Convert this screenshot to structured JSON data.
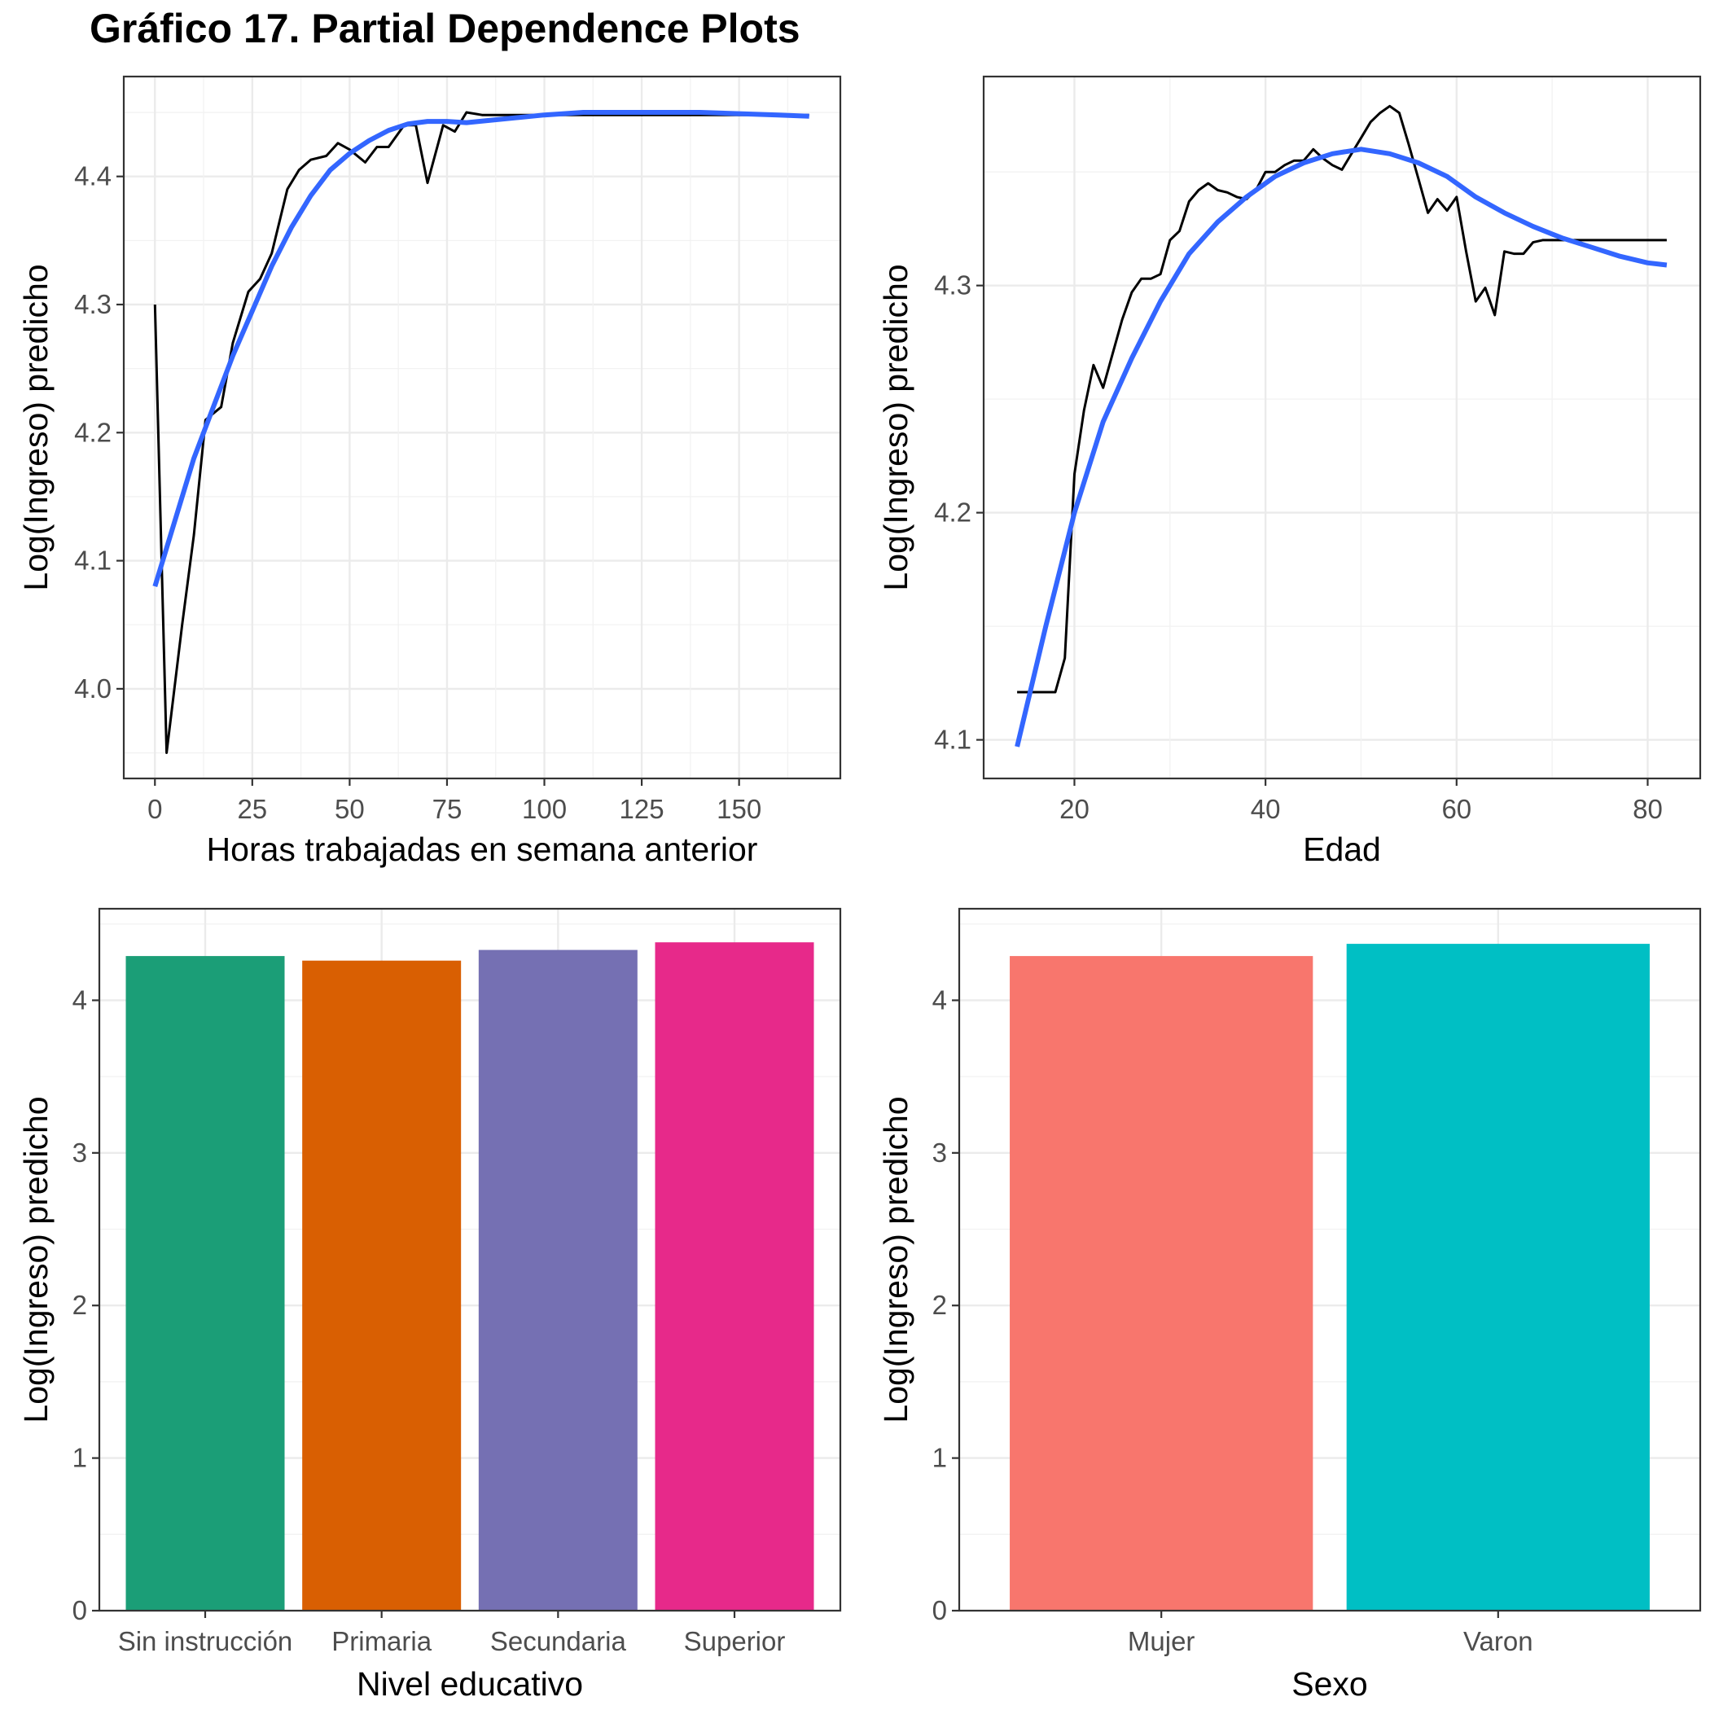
{
  "title": "Gráfico 17. Partial Dependence Plots",
  "chart_data": [
    {
      "type": "line",
      "xlabel": "Horas trabajadas en semana anterior",
      "ylabel": "Log(Ingreso) predicho",
      "xlim": [
        -8,
        176
      ],
      "ylim": [
        3.93,
        4.478
      ],
      "x_ticks": [
        0,
        25,
        50,
        75,
        100,
        125,
        150
      ],
      "y_ticks": [
        4.0,
        4.1,
        4.2,
        4.3,
        4.4
      ],
      "x_tick_labels": [
        "0",
        "25",
        "50",
        "75",
        "100",
        "125",
        "150"
      ],
      "y_tick_labels": [
        "4.0",
        "4.1",
        "4.2",
        "4.3",
        "4.4"
      ],
      "grid": true,
      "series": [
        {
          "color": "#000000",
          "x": [
            0,
            3,
            7,
            10,
            13,
            17,
            20,
            24,
            27,
            30,
            34,
            37,
            40,
            44,
            47,
            50,
            54,
            57,
            60,
            64,
            67,
            70,
            74,
            77,
            80,
            84,
            87,
            90,
            100,
            110,
            120,
            130,
            140,
            150,
            160,
            168
          ],
          "y": [
            4.3,
            3.95,
            4.05,
            4.12,
            4.21,
            4.22,
            4.27,
            4.31,
            4.32,
            4.34,
            4.39,
            4.405,
            4.413,
            4.416,
            4.426,
            4.421,
            4.411,
            4.423,
            4.423,
            4.44,
            4.44,
            4.395,
            4.44,
            4.435,
            4.45,
            4.448,
            4.448,
            4.448,
            4.448,
            4.448,
            4.448,
            4.448,
            4.448,
            4.448,
            4.448,
            4.448
          ]
        },
        {
          "color": "#3366ff",
          "x": [
            0,
            5,
            10,
            15,
            20,
            25,
            30,
            35,
            40,
            45,
            50,
            55,
            60,
            65,
            70,
            75,
            80,
            90,
            100,
            110,
            120,
            130,
            140,
            150,
            160,
            168
          ],
          "y": [
            4.08,
            4.13,
            4.18,
            4.22,
            4.26,
            4.295,
            4.33,
            4.36,
            4.385,
            4.405,
            4.418,
            4.428,
            4.436,
            4.441,
            4.443,
            4.443,
            4.442,
            4.445,
            4.448,
            4.45,
            4.45,
            4.45,
            4.45,
            4.449,
            4.448,
            4.447
          ]
        }
      ]
    },
    {
      "type": "line",
      "xlabel": "Edad",
      "ylabel": "Log(Ingreso) predicho",
      "xlim": [
        10.5,
        85.5
      ],
      "ylim": [
        4.083,
        4.392
      ],
      "x_ticks": [
        20,
        40,
        60,
        80
      ],
      "y_ticks": [
        4.1,
        4.2,
        4.3
      ],
      "x_tick_labels": [
        "20",
        "40",
        "60",
        "80"
      ],
      "y_tick_labels": [
        "4.1",
        "4.2",
        "4.3"
      ],
      "grid": true,
      "series": [
        {
          "color": "#000000",
          "x": [
            14,
            16,
            18,
            19,
            20,
            21,
            22,
            23,
            24,
            25,
            26,
            27,
            28,
            29,
            30,
            31,
            32,
            33,
            34,
            35,
            36,
            37,
            38,
            39,
            40,
            41,
            42,
            43,
            44,
            45,
            46,
            47,
            48,
            49,
            50,
            51,
            52,
            53,
            54,
            55,
            56,
            57,
            58,
            59,
            60,
            61,
            62,
            63,
            64,
            65,
            66,
            67,
            68,
            69,
            70,
            71,
            72,
            73,
            74,
            75,
            76,
            77,
            78,
            79,
            80,
            81,
            82
          ],
          "y": [
            4.121,
            4.121,
            4.121,
            4.136,
            4.217,
            4.245,
            4.265,
            4.255,
            4.27,
            4.285,
            4.297,
            4.303,
            4.303,
            4.305,
            4.32,
            4.324,
            4.337,
            4.342,
            4.345,
            4.342,
            4.341,
            4.339,
            4.338,
            4.342,
            4.35,
            4.35,
            4.353,
            4.355,
            4.355,
            4.36,
            4.356,
            4.353,
            4.351,
            4.358,
            4.365,
            4.372,
            4.376,
            4.379,
            4.376,
            4.362,
            4.347,
            4.332,
            4.338,
            4.333,
            4.339,
            4.315,
            4.293,
            4.299,
            4.287,
            4.315,
            4.314,
            4.314,
            4.319,
            4.32,
            4.32,
            4.32,
            4.32,
            4.32,
            4.32,
            4.32,
            4.32,
            4.32,
            4.32,
            4.32,
            4.32,
            4.32,
            4.32
          ]
        },
        {
          "color": "#3366ff",
          "x": [
            14,
            17,
            20,
            23,
            26,
            29,
            32,
            35,
            38,
            41,
            44,
            47,
            50,
            53,
            56,
            59,
            62,
            65,
            68,
            71,
            74,
            77,
            80,
            82
          ],
          "y": [
            4.097,
            4.15,
            4.2,
            4.24,
            4.268,
            4.293,
            4.314,
            4.328,
            4.339,
            4.348,
            4.354,
            4.358,
            4.36,
            4.358,
            4.354,
            4.348,
            4.339,
            4.332,
            4.326,
            4.321,
            4.317,
            4.313,
            4.31,
            4.309
          ]
        }
      ]
    },
    {
      "type": "bar",
      "xlabel": "Nivel educativo",
      "ylabel": "Log(Ingreso) predicho",
      "categories": [
        "Sin instrucción",
        "Primaria",
        "Secundaria",
        "Superior"
      ],
      "values": [
        4.29,
        4.26,
        4.33,
        4.38
      ],
      "colors": [
        "#1b9e77",
        "#d95f02",
        "#7570b3",
        "#e7298a"
      ],
      "ylim": [
        0,
        4.6
      ],
      "y_ticks": [
        0,
        1,
        2,
        3,
        4
      ],
      "y_tick_labels": [
        "0",
        "1",
        "2",
        "3",
        "4"
      ],
      "grid": true
    },
    {
      "type": "bar",
      "xlabel": "Sexo",
      "ylabel": "Log(Ingreso) predicho",
      "categories": [
        "Mujer",
        "Varon"
      ],
      "values": [
        4.29,
        4.37
      ],
      "colors": [
        "#f8766d",
        "#00bfc4"
      ],
      "ylim": [
        0,
        4.6
      ],
      "y_ticks": [
        0,
        1,
        2,
        3,
        4
      ],
      "y_tick_labels": [
        "0",
        "1",
        "2",
        "3",
        "4"
      ],
      "grid": true
    }
  ]
}
